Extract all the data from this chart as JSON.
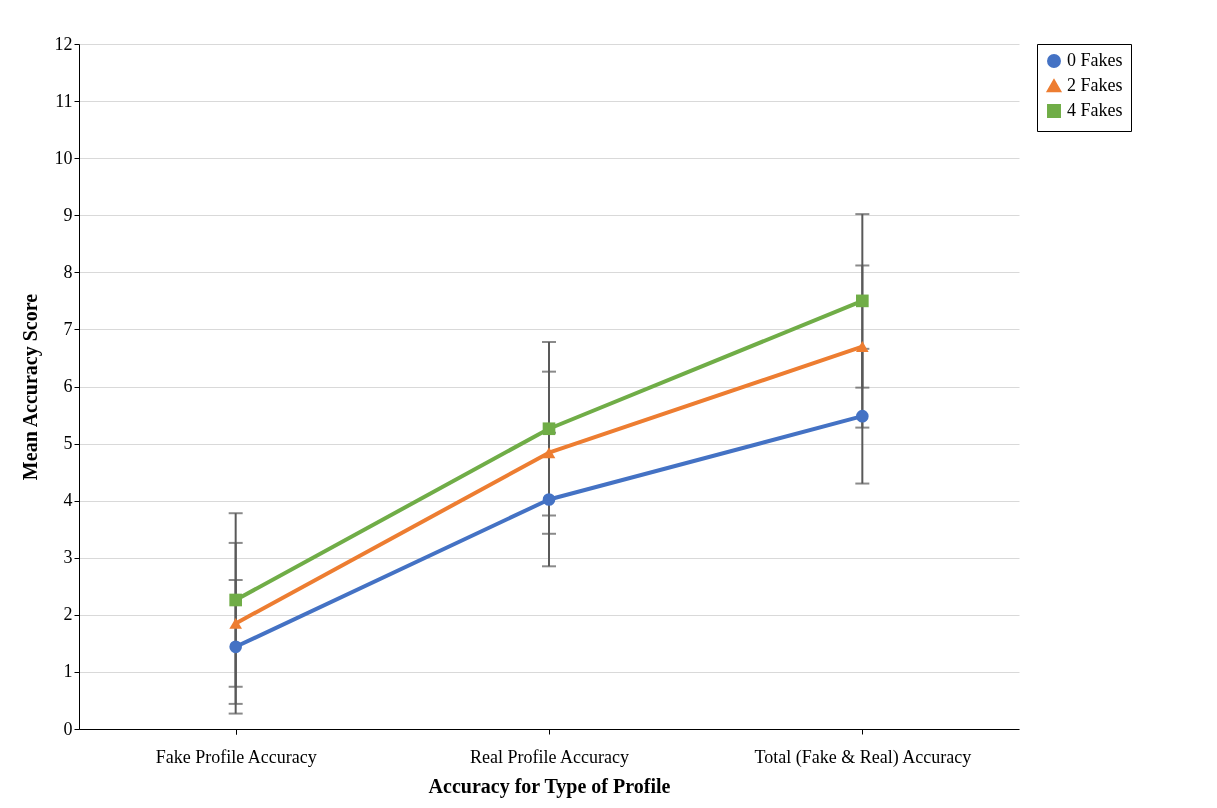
{
  "chart_data": {
    "type": "line",
    "xlabel": "Accuracy for Type of Profile",
    "ylabel": "Mean Accuracy Score",
    "categories": [
      "Fake Profile Accuracy",
      "Real Profile Accuracy",
      "Total (Fake & Real) Accuracy"
    ],
    "ylim": [
      0,
      12
    ],
    "yticks": [
      0,
      1,
      2,
      3,
      4,
      5,
      6,
      7,
      8,
      9,
      10,
      11,
      12
    ],
    "grid": "y",
    "legend": "right",
    "line_style": "solid",
    "series": [
      {
        "name": "0 Fakes",
        "color": "#4472c4",
        "marker": "circle",
        "values": [
          1.44,
          4.02,
          5.48
        ],
        "errors": [
          1.17,
          1.17,
          1.18
        ]
      },
      {
        "name": "2 Fakes",
        "color": "#ed7d31",
        "marker": "triangle",
        "values": [
          1.85,
          4.84,
          6.7
        ],
        "errors": [
          1.41,
          1.42,
          1.42
        ]
      },
      {
        "name": "4 Fakes",
        "color": "#70ad47",
        "marker": "square",
        "values": [
          2.26,
          5.26,
          7.5
        ],
        "errors": [
          1.52,
          1.52,
          1.52
        ]
      }
    ]
  }
}
